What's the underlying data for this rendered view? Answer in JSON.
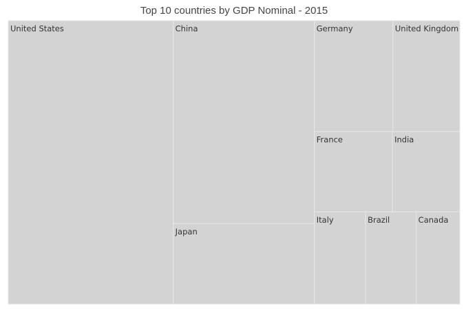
{
  "chart_data": {
    "type": "treemap",
    "title": "Top 10 countries by GDP Nominal - 2015",
    "categories": [
      "United States",
      "China",
      "Japan",
      "Germany",
      "United Kingdom",
      "France",
      "India",
      "Italy",
      "Brazil",
      "Canada"
    ],
    "values": [
      18.04,
      11.06,
      4.38,
      3.36,
      2.86,
      2.42,
      2.09,
      1.82,
      1.8,
      1.55
    ],
    "color": "#d3d3d3"
  }
}
